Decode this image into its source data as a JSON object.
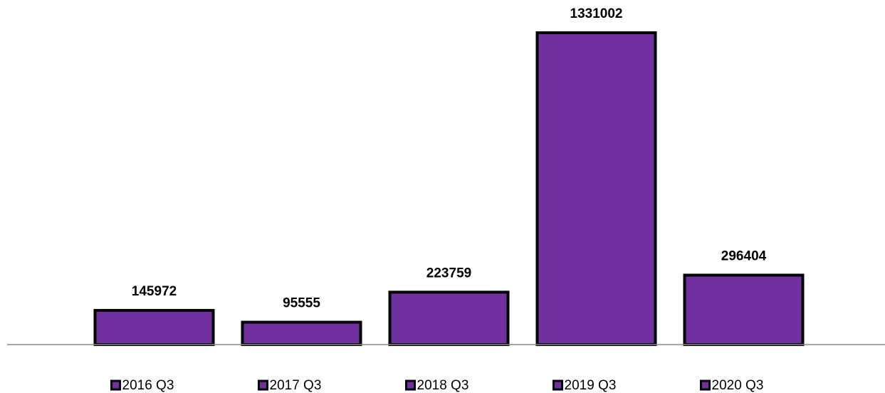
{
  "chart_data": {
    "type": "bar",
    "categories": [
      "2016 Q3",
      "2017 Q3",
      "2018 Q3",
      "2019 Q3",
      "2020 Q3"
    ],
    "values": [
      145972,
      95555,
      223759,
      1331002,
      296404
    ],
    "color": "#7030a0",
    "ylim": [
      0,
      1400000
    ],
    "legend": "bottom"
  }
}
